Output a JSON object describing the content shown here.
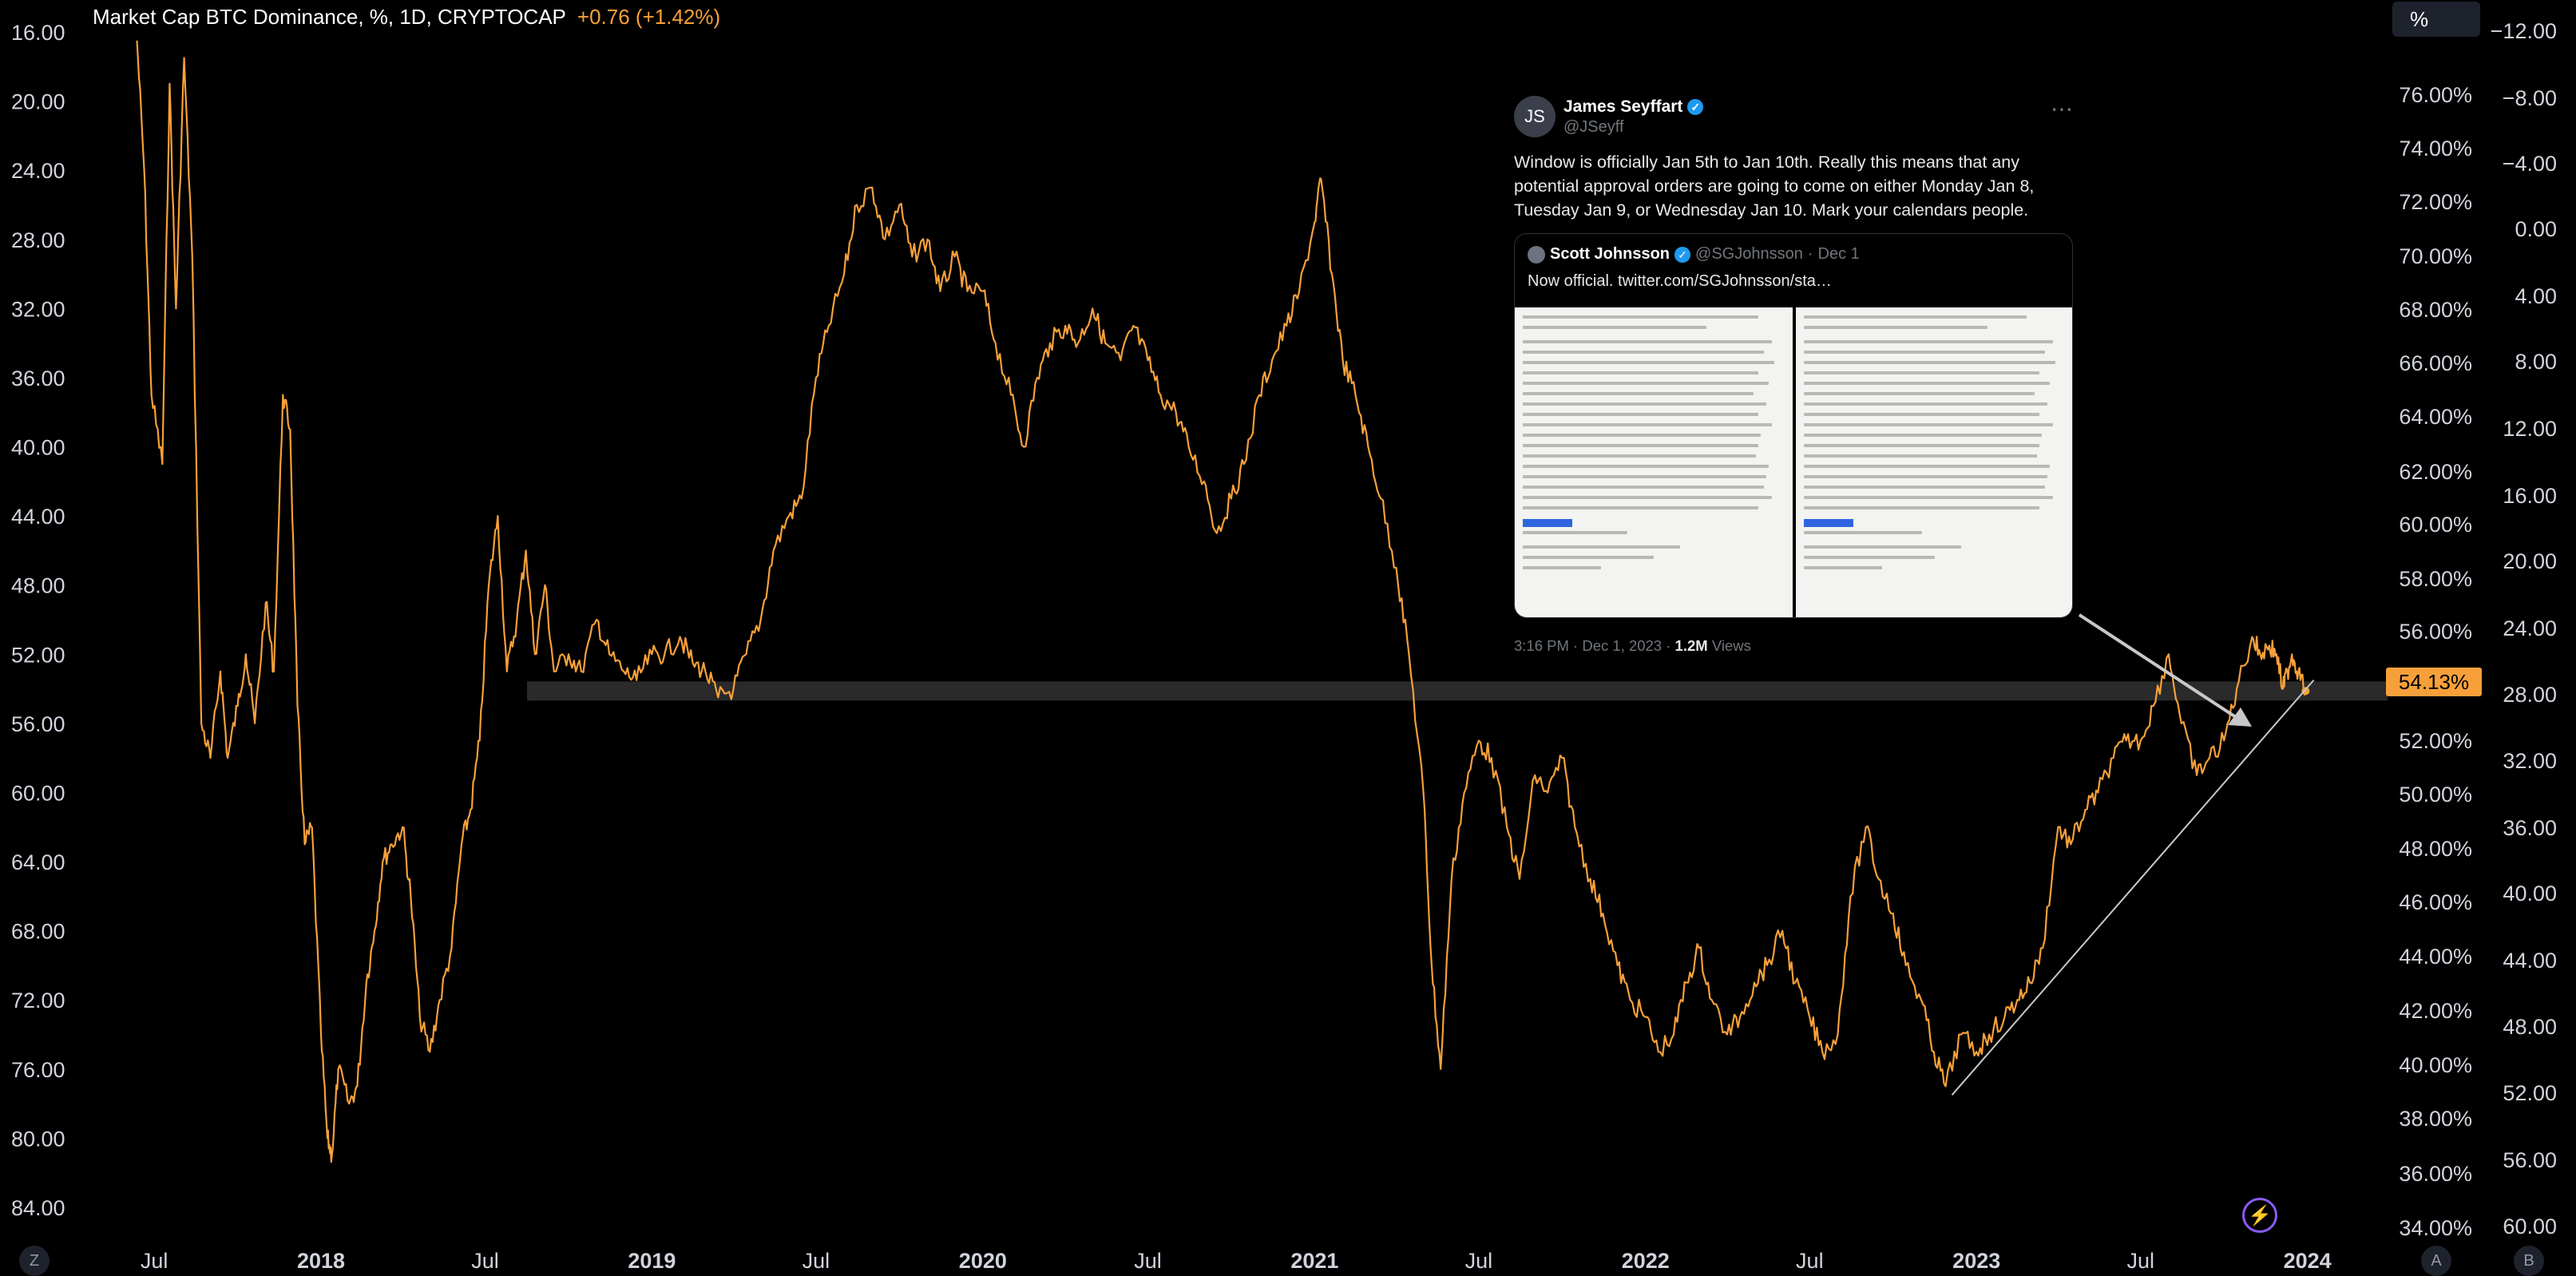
{
  "header": {
    "symbol": "Market Cap BTC Dominance, %, 1D, CRYPTOCAP",
    "change": "+0.76 (+1.42%)"
  },
  "toolbar": {
    "scale_button": "%"
  },
  "current_value": "54.13%",
  "corners": {
    "bottom_left": "Z",
    "bottom_right_a": "A",
    "bottom_right_b": "B"
  },
  "tweet": {
    "author": "James Seyffart",
    "handle": "@JSeyff",
    "text": "Window is officially Jan 5th to Jan 10th. Really this means that any potential approval orders are going to come on either Monday Jan 8, Tuesday Jan 9, or Wednesday Jan 10. Mark your calendars people.",
    "quote": {
      "author": "Scott Johnsson",
      "handle": "@SGJohnsson",
      "date": "Dec 1",
      "text": "Now official.  twitter.com/SGJohnsson/sta…"
    },
    "time": "3:16 PM · Dec 1, 2023 · ",
    "views": "1.2M",
    "views_label": " Views"
  },
  "colors": {
    "line": "#f7a03a",
    "background": "#000000",
    "band": "#2a2a2a",
    "annotation": "#c8c8c8"
  },
  "chart_data": {
    "type": "line",
    "title": "Market Cap BTC Dominance",
    "series": [
      {
        "points": [
          [
            "2017-06-12",
            16.5
          ],
          [
            "2017-06-20",
            24
          ],
          [
            "2017-06-28",
            37
          ],
          [
            "2017-07-10",
            41
          ],
          [
            "2017-07-18",
            19
          ],
          [
            "2017-07-25",
            32
          ],
          [
            "2017-08-03",
            17.5
          ],
          [
            "2017-08-12",
            29
          ],
          [
            "2017-08-22",
            56
          ],
          [
            "2017-09-01",
            58
          ],
          [
            "2017-09-12",
            53
          ],
          [
            "2017-09-20",
            58
          ],
          [
            "2017-10-01",
            55
          ],
          [
            "2017-10-10",
            52
          ],
          [
            "2017-10-20",
            56
          ],
          [
            "2017-11-01",
            49
          ],
          [
            "2017-11-10",
            53
          ],
          [
            "2017-11-20",
            37
          ],
          [
            "2017-11-28",
            39
          ],
          [
            "2017-12-06",
            55
          ],
          [
            "2017-12-14",
            63
          ],
          [
            "2017-12-22",
            62
          ],
          [
            "2018-01-01",
            74
          ],
          [
            "2018-01-08",
            80
          ],
          [
            "2018-01-13",
            81
          ],
          [
            "2018-01-20",
            76
          ],
          [
            "2018-02-01",
            78
          ],
          [
            "2018-02-10",
            77
          ],
          [
            "2018-02-20",
            71
          ],
          [
            "2018-03-01",
            68
          ],
          [
            "2018-03-10",
            64
          ],
          [
            "2018-03-20",
            63
          ],
          [
            "2018-04-01",
            62
          ],
          [
            "2018-04-10",
            66
          ],
          [
            "2018-04-20",
            73
          ],
          [
            "2018-05-01",
            75
          ],
          [
            "2018-05-12",
            72
          ],
          [
            "2018-05-25",
            69
          ],
          [
            "2018-06-05",
            63
          ],
          [
            "2018-06-15",
            61
          ],
          [
            "2018-06-25",
            57
          ],
          [
            "2018-07-05",
            48
          ],
          [
            "2018-07-15",
            44
          ],
          [
            "2018-07-25",
            53
          ],
          [
            "2018-08-05",
            50
          ],
          [
            "2018-08-15",
            46
          ],
          [
            "2018-08-25",
            52
          ],
          [
            "2018-09-05",
            48
          ],
          [
            "2018-09-15",
            53
          ],
          [
            "2018-10-01",
            52
          ],
          [
            "2018-10-15",
            53
          ],
          [
            "2018-11-01",
            50
          ],
          [
            "2018-11-15",
            52
          ],
          [
            "2018-12-01",
            53
          ],
          [
            "2018-12-15",
            53.5
          ],
          [
            "2019-01-01",
            52
          ],
          [
            "2019-01-15",
            52
          ],
          [
            "2019-02-01",
            51
          ],
          [
            "2019-02-15",
            52.5
          ],
          [
            "2019-03-01",
            53
          ],
          [
            "2019-03-15",
            54.5
          ],
          [
            "2019-04-01",
            54
          ],
          [
            "2019-04-15",
            52
          ],
          [
            "2019-05-01",
            50
          ],
          [
            "2019-05-15",
            46
          ],
          [
            "2019-06-01",
            44
          ],
          [
            "2019-06-15",
            43
          ],
          [
            "2019-07-01",
            36
          ],
          [
            "2019-07-15",
            33
          ],
          [
            "2019-08-01",
            30
          ],
          [
            "2019-08-15",
            26
          ],
          [
            "2019-09-01",
            25
          ],
          [
            "2019-09-15",
            28
          ],
          [
            "2019-10-01",
            26
          ],
          [
            "2019-10-15",
            29
          ],
          [
            "2019-11-01",
            28
          ],
          [
            "2019-11-15",
            31
          ],
          [
            "2019-12-01",
            29
          ],
          [
            "2019-12-15",
            31
          ],
          [
            "2020-01-01",
            31
          ],
          [
            "2020-01-15",
            34
          ],
          [
            "2020-02-01",
            37
          ],
          [
            "2020-02-15",
            40
          ],
          [
            "2020-03-01",
            36
          ],
          [
            "2020-03-15",
            34
          ],
          [
            "2020-04-01",
            33
          ],
          [
            "2020-04-15",
            34
          ],
          [
            "2020-05-01",
            32
          ],
          [
            "2020-05-15",
            34
          ],
          [
            "2020-06-01",
            35
          ],
          [
            "2020-06-15",
            33
          ],
          [
            "2020-07-01",
            35
          ],
          [
            "2020-07-15",
            37
          ],
          [
            "2020-08-01",
            38
          ],
          [
            "2020-08-15",
            40
          ],
          [
            "2020-09-01",
            42
          ],
          [
            "2020-09-15",
            45
          ],
          [
            "2020-10-01",
            43
          ],
          [
            "2020-10-15",
            41
          ],
          [
            "2020-11-01",
            37
          ],
          [
            "2020-11-15",
            35
          ],
          [
            "2020-12-01",
            33
          ],
          [
            "2020-12-15",
            31
          ],
          [
            "2021-01-01",
            27
          ],
          [
            "2021-01-08",
            24.5
          ],
          [
            "2021-01-20",
            30
          ],
          [
            "2021-02-01",
            35
          ],
          [
            "2021-02-15",
            37
          ],
          [
            "2021-03-01",
            40
          ],
          [
            "2021-03-15",
            43
          ],
          [
            "2021-04-01",
            47
          ],
          [
            "2021-04-15",
            52
          ],
          [
            "2021-05-01",
            60
          ],
          [
            "2021-05-10",
            70
          ],
          [
            "2021-05-20",
            76
          ],
          [
            "2021-06-01",
            65
          ],
          [
            "2021-06-15",
            60
          ],
          [
            "2021-07-01",
            57
          ],
          [
            "2021-07-15",
            58
          ],
          [
            "2021-08-01",
            62
          ],
          [
            "2021-08-15",
            65
          ],
          [
            "2021-09-01",
            59
          ],
          [
            "2021-09-15",
            60
          ],
          [
            "2021-10-01",
            58
          ],
          [
            "2021-10-15",
            62
          ],
          [
            "2021-11-01",
            65
          ],
          [
            "2021-11-15",
            67
          ],
          [
            "2021-12-01",
            70
          ],
          [
            "2021-12-15",
            72
          ],
          [
            "2022-01-01",
            73
          ],
          [
            "2022-01-15",
            75
          ],
          [
            "2022-02-01",
            74
          ],
          [
            "2022-02-15",
            71
          ],
          [
            "2022-03-01",
            69
          ],
          [
            "2022-03-15",
            72
          ],
          [
            "2022-04-01",
            74
          ],
          [
            "2022-04-15",
            73
          ],
          [
            "2022-05-01",
            71
          ],
          [
            "2022-05-15",
            70
          ],
          [
            "2022-06-01",
            68
          ],
          [
            "2022-06-15",
            71
          ],
          [
            "2022-07-01",
            73
          ],
          [
            "2022-07-15",
            75
          ],
          [
            "2022-08-01",
            74
          ],
          [
            "2022-08-15",
            66
          ],
          [
            "2022-09-01",
            62
          ],
          [
            "2022-09-15",
            65
          ],
          [
            "2022-10-01",
            67
          ],
          [
            "2022-10-15",
            70
          ],
          [
            "2022-11-01",
            72
          ],
          [
            "2022-11-15",
            75
          ],
          [
            "2022-11-28",
            77
          ],
          [
            "2022-12-15",
            74
          ],
          [
            "2023-01-01",
            75
          ],
          [
            "2023-01-15",
            74
          ],
          [
            "2023-02-01",
            73
          ],
          [
            "2023-02-15",
            72
          ],
          [
            "2023-03-01",
            71
          ],
          [
            "2023-03-15",
            69
          ],
          [
            "2023-04-01",
            62
          ],
          [
            "2023-04-15",
            63
          ],
          [
            "2023-05-01",
            61
          ],
          [
            "2023-05-15",
            60
          ],
          [
            "2023-06-01",
            58
          ],
          [
            "2023-06-15",
            57
          ],
          [
            "2023-07-01",
            57
          ],
          [
            "2023-07-15",
            55
          ],
          [
            "2023-08-01",
            52
          ],
          [
            "2023-08-15",
            56
          ],
          [
            "2023-09-01",
            59
          ],
          [
            "2023-09-15",
            58
          ],
          [
            "2023-10-01",
            57
          ],
          [
            "2023-10-15",
            54
          ],
          [
            "2023-11-01",
            51
          ],
          [
            "2023-11-10",
            52
          ],
          [
            "2023-11-20",
            51.5
          ],
          [
            "2023-11-28",
            52
          ],
          [
            "2023-12-05",
            54
          ],
          [
            "2023-12-10",
            53
          ],
          [
            "2023-12-15",
            52
          ],
          [
            "2023-12-22",
            53
          ],
          [
            "2023-12-30",
            54.13
          ]
        ]
      }
    ],
    "x_labels": [
      "Jul",
      "2018",
      "Jul",
      "2019",
      "Jul",
      "2020",
      "Jul",
      "2021",
      "Jul",
      "2022",
      "Jul",
      "2023",
      "Jul",
      "2024"
    ],
    "x_ticks": [
      "2017-07-01",
      "2018-01-01",
      "2018-07-01",
      "2019-01-01",
      "2019-07-01",
      "2020-01-01",
      "2020-07-01",
      "2021-01-01",
      "2021-07-01",
      "2022-01-01",
      "2022-07-01",
      "2023-01-01",
      "2023-07-01",
      "2024-01-01"
    ],
    "xlim": [
      "2017-04-10",
      "2024-03-25"
    ],
    "left_axis": {
      "ticks": [
        "16.00",
        "20.00",
        "24.00",
        "28.00",
        "32.00",
        "36.00",
        "40.00",
        "44.00",
        "48.00",
        "52.00",
        "56.00",
        "60.00",
        "64.00",
        "68.00",
        "72.00",
        "76.00",
        "80.00",
        "84.00"
      ],
      "ylim": [
        16,
        84
      ],
      "inverted": true
    },
    "right_axis_1": {
      "ticks": [
        "76.00%",
        "74.00%",
        "72.00%",
        "70.00%",
        "68.00%",
        "66.00%",
        "64.00%",
        "62.00%",
        "60.00%",
        "58.00%",
        "56.00%",
        "52.00%",
        "50.00%",
        "48.00%",
        "46.00%",
        "44.00%",
        "42.00%",
        "40.00%",
        "38.00%",
        "36.00%",
        "34.00%"
      ]
    },
    "right_axis_2": {
      "ticks": [
        "−12.00",
        "−8.00",
        "−4.00",
        "0.00",
        "4.00",
        "8.00",
        "12.00",
        "16.00",
        "20.00",
        "24.00",
        "28.00",
        "32.00",
        "36.00",
        "40.00",
        "44.00",
        "48.00",
        "52.00",
        "56.00",
        "60.00"
      ]
    },
    "band_value": 54.13,
    "trendline": [
      [
        "2022-12-05",
        77.5
      ],
      [
        "2024-01-08",
        53.5
      ]
    ],
    "grid": false,
    "legend": "none"
  }
}
